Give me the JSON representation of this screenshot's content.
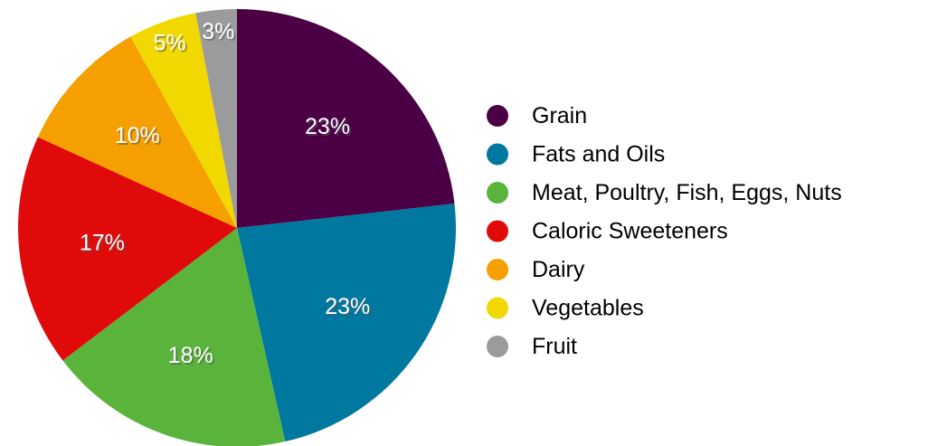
{
  "chart_data": {
    "type": "pie",
    "title": "",
    "legend_position": "right",
    "slices": [
      {
        "label": "Grain",
        "value": 23,
        "display": "23%",
        "color": "#4b0046"
      },
      {
        "label": "Fats and Oils",
        "value": 23,
        "display": "23%",
        "color": "#0078a0"
      },
      {
        "label": "Meat, Poultry, Fish, Eggs, Nuts",
        "value": 18,
        "display": "18%",
        "color": "#5ab43c"
      },
      {
        "label": "Caloric Sweeteners",
        "value": 17,
        "display": "17%",
        "color": "#e10a0a"
      },
      {
        "label": "Dairy",
        "value": 10,
        "display": "10%",
        "color": "#f5a000"
      },
      {
        "label": "Vegetables",
        "value": 5,
        "display": "5%",
        "color": "#f0d800"
      },
      {
        "label": "Fruit",
        "value": 3,
        "display": "3%",
        "color": "#9b9b9b"
      }
    ]
  }
}
